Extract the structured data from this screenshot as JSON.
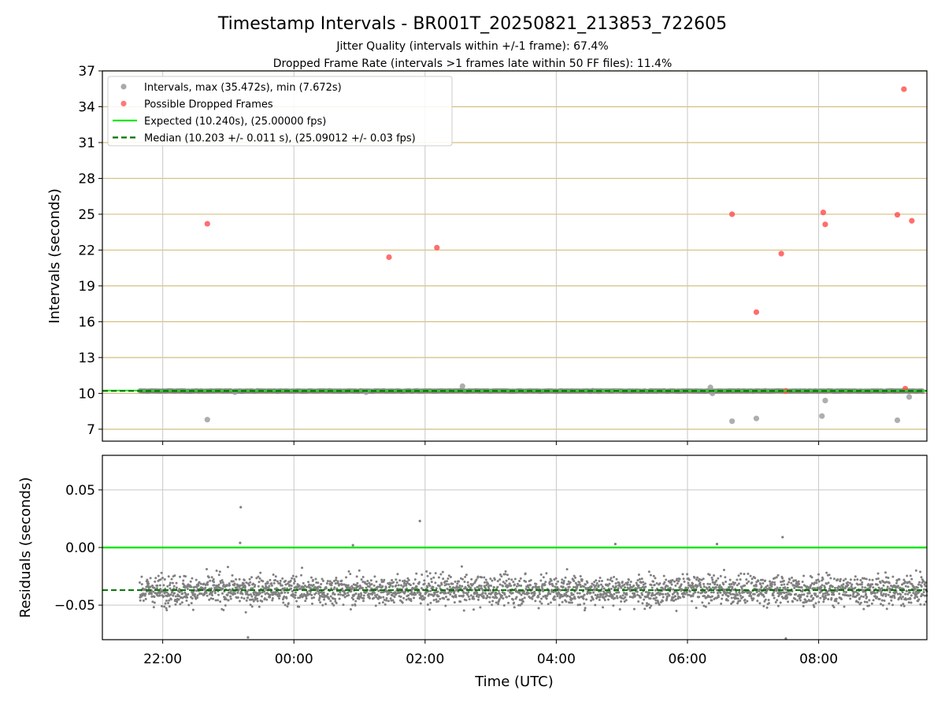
{
  "title": "Timestamp Intervals - BR001T_20250821_213853_722605",
  "subtitle_1": "Jitter Quality (intervals within +/-1 frame): 67.4%",
  "subtitle_2": "Dropped Frame Rate (intervals >1 frames late within 50 FF files): 11.4%",
  "colors": {
    "interval_points": "#808080",
    "dropped_points": "#ff4a4a",
    "expected_line": "#19e619",
    "median_line": "#007000",
    "hgrid_top": "#d4bf7f",
    "grid": "#c8c8c8"
  },
  "chart_data": [
    {
      "type": "scatter",
      "panel": "top",
      "ylabel": "Intervals (seconds)",
      "ylim": [
        6,
        37
      ],
      "yticks": [
        "7",
        "10",
        "13",
        "16",
        "19",
        "22",
        "25",
        "28",
        "31",
        "34",
        "37"
      ],
      "grid": true,
      "legend_position": "top-left",
      "legend": [
        {
          "label": "Intervals, max (35.472s), min (7.672s)",
          "kind": "dot",
          "color": "#9a9a9a"
        },
        {
          "label": "Possible Dropped Frames",
          "kind": "dot",
          "color": "#ff6060"
        },
        {
          "label": "Expected (10.240s), (25.00000 fps)",
          "kind": "line",
          "color": "#19e619"
        },
        {
          "label": "Median (10.203 +/- 0.011 s), (25.09012 +/- 0.03 fps)",
          "kind": "dash",
          "color": "#007000"
        }
      ],
      "expected_value": 10.24,
      "median_value": 10.203,
      "baseline": {
        "x_start_hours": 21.65,
        "x_end_hours": 33.6,
        "value": 10.2
      },
      "series": [
        {
          "name": "Intervals",
          "x_hours": [
            22.68,
            23.1,
            25.1,
            26.57,
            28.75,
            28.92,
            30.35,
            30.38,
            30.68,
            31.05,
            32.05,
            32.1,
            33.2,
            33.38,
            31.5
          ],
          "y": [
            7.8,
            10.1,
            10.1,
            10.6,
            10.2,
            10.2,
            10.5,
            10.0,
            7.67,
            7.9,
            8.1,
            9.4,
            7.75,
            9.7,
            10.2
          ]
        },
        {
          "name": "Possible Dropped Frames",
          "x_hours": [
            22.68,
            25.45,
            26.18,
            30.68,
            31.05,
            31.43,
            31.5,
            32.07,
            32.1,
            33.2,
            33.3,
            33.42,
            33.32
          ],
          "y": [
            24.2,
            21.4,
            22.2,
            25.0,
            16.8,
            21.7,
            10.2,
            25.15,
            24.15,
            24.95,
            35.47,
            24.45,
            10.4
          ]
        }
      ]
    },
    {
      "type": "scatter",
      "panel": "bottom",
      "ylabel": "Residuals (seconds)",
      "xlabel": "Time (UTC)",
      "ylim": [
        -0.08,
        0.08
      ],
      "yticks": [
        "0.05",
        "0.00",
        "−0.05"
      ],
      "xticks": [
        "22:00",
        "00:00",
        "02:00",
        "04:00",
        "06:00",
        "08:00"
      ],
      "x_range_hours": [
        21.08,
        33.65
      ],
      "grid": true,
      "expected_residual": 0.0,
      "median_residual": -0.037,
      "residual_cloud": {
        "x_start_hours": 21.65,
        "x_end_hours": 33.65,
        "center": -0.037,
        "spread": 0.012
      },
      "outliers": {
        "x_hours": [
          23.19,
          23.18,
          25.92,
          31.45,
          31.5,
          24.9,
          28.9,
          30.45,
          23.3
        ],
        "y": [
          0.035,
          0.004,
          0.023,
          0.009,
          -0.079,
          0.002,
          0.003,
          0.003,
          -0.078
        ]
      }
    }
  ]
}
